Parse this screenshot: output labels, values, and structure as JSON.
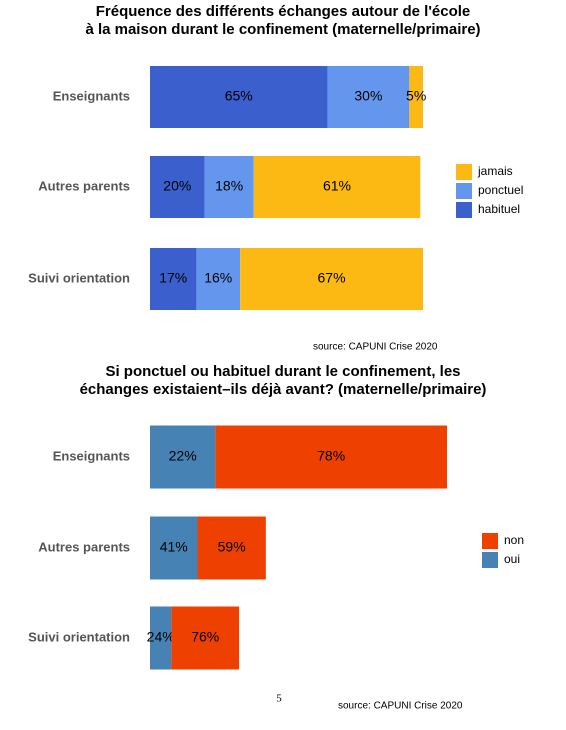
{
  "chart_data": [
    {
      "type": "stacked_barh",
      "title": [
        "Fréquence des différents échanges autour de l'école",
        "à la maison durant le confinement (maternelle/primaire)"
      ],
      "categories": [
        "Enseignants",
        "Autres parents",
        "Suivi orientation"
      ],
      "xlim": [
        0,
        100
      ],
      "series": [
        {
          "name": "habituel",
          "color": "#3b5fcd",
          "values": [
            65,
            20,
            17
          ],
          "value_labels": [
            "65%",
            "20%",
            "17%"
          ]
        },
        {
          "name": "ponctuel",
          "color": "#6596ee",
          "values": [
            30,
            18,
            16
          ],
          "value_labels": [
            "30%",
            "18%",
            "16%"
          ]
        },
        {
          "name": "jamais",
          "color": "#fdb913",
          "values": [
            5,
            61,
            67
          ],
          "value_labels": [
            "5%",
            "61%",
            "67%"
          ]
        }
      ],
      "source": "source: CAPUNI Crise 2020"
    },
    {
      "type": "stacked_barh",
      "title": [
        "Si ponctuel ou habituel durant le confinement, les",
        "échanges existaient–ils déjà avant? (maternelle/primaire)"
      ],
      "categories": [
        "Enseignants",
        "Autres parents",
        "Suivi orientation"
      ],
      "xlim": [
        0,
        100
      ],
      "row_totals": [
        100,
        39,
        30
      ],
      "series": [
        {
          "name": "oui",
          "color": "#4682b4",
          "values": [
            22,
            41,
            24
          ],
          "value_labels": [
            "22%",
            "41%",
            "24%"
          ]
        },
        {
          "name": "non",
          "color": "#ee4000",
          "values": [
            78,
            59,
            76
          ],
          "value_labels": [
            "78%",
            "59%",
            "76%"
          ]
        }
      ],
      "source": "source: CAPUNI Crise 2020"
    }
  ],
  "page_number": 5
}
